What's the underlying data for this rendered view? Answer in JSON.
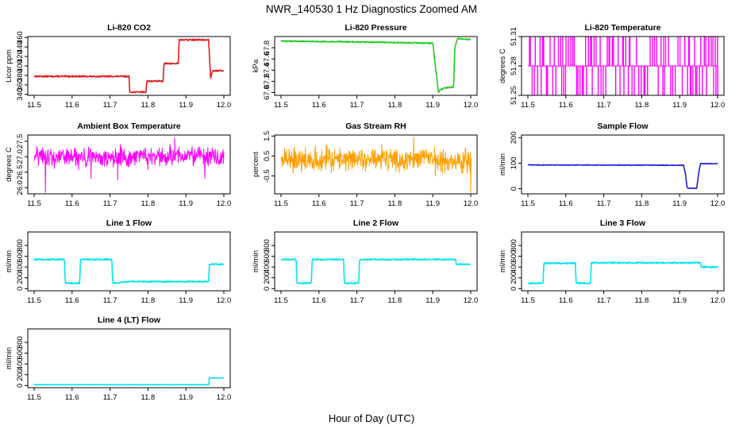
{
  "title": "NWR_140530  1 Hz Diagnostics Zoomed AM",
  "xlabel": "Hour of Day (UTC)",
  "colors": {
    "red": "#e41a1c",
    "green": "#1fcc1f",
    "magenta": "#ff00ff",
    "orange": "#ff9f00",
    "blue": "#1f1fd6",
    "cyan": "#00e5ee"
  },
  "chart_data": [
    {
      "type": "line",
      "title": "Li-820 CO2",
      "ylabel": "Licor ppm",
      "color": "#e41a1c",
      "noise": 1.5,
      "x": [
        11.5,
        11.75,
        11.752,
        11.795,
        11.797,
        11.84,
        11.842,
        11.88,
        11.882,
        11.96,
        11.965,
        11.97,
        12.0
      ],
      "y": [
        378,
        378,
        345,
        345,
        368,
        368,
        405,
        405,
        455,
        455,
        375,
        390,
        390
      ],
      "xlim": [
        11.5,
        12.0
      ],
      "ylim": [
        338,
        462
      ],
      "xticks": [
        "11.5",
        "11.6",
        "11.7",
        "11.8",
        "11.9",
        "12.0"
      ],
      "yticks": [
        "340",
        "360",
        "380",
        "400",
        "420",
        "440",
        "460"
      ]
    },
    {
      "type": "line",
      "title": "Li-820 Pressure",
      "ylabel": "kPa",
      "color": "#1fcc1f",
      "noise": 0.01,
      "x": [
        11.5,
        11.75,
        11.9,
        11.915,
        11.92,
        11.93,
        11.955,
        11.958,
        11.965,
        11.97,
        12.0
      ],
      "y": [
        67.92,
        67.9,
        67.88,
        67.0,
        67.05,
        67.08,
        67.1,
        67.8,
        67.96,
        67.96,
        67.95
      ],
      "xlim": [
        11.5,
        12.0
      ],
      "ylim": [
        66.95,
        68.0
      ],
      "xticks": [
        "11.5",
        "11.6",
        "11.7",
        "11.8",
        "11.9",
        "12.0"
      ],
      "yticks": [
        "67.0",
        "67.2",
        "67.4",
        "67.6",
        "67.8"
      ]
    },
    {
      "type": "line",
      "title": "Li-820 Temperature",
      "ylabel": "degrees C",
      "color": "#ff00ff",
      "pattern": "binary",
      "levels": [
        51.25,
        51.28,
        51.31
      ],
      "xlim": [
        11.5,
        12.0
      ],
      "ylim": [
        51.25,
        51.31
      ],
      "xticks": [
        "11.5",
        "11.6",
        "11.7",
        "11.8",
        "11.9",
        "12.0"
      ],
      "yticks": [
        "51.25",
        "51.28",
        "51.31"
      ]
    },
    {
      "type": "line",
      "title": "Ambient Box Temperature",
      "ylabel": "degrees C",
      "color": "#ff00ff",
      "pattern": "noisy",
      "mean": 27.0,
      "amplitude": 0.28,
      "spikes": [
        [
          11.53,
          25.85
        ],
        [
          11.65,
          26.3
        ],
        [
          11.72,
          26.25
        ],
        [
          11.87,
          27.6
        ],
        [
          11.95,
          26.3
        ]
      ],
      "xlim": [
        11.5,
        12.0
      ],
      "ylim": [
        25.8,
        27.7
      ],
      "xticks": [
        "11.5",
        "11.6",
        "11.7",
        "11.8",
        "11.9",
        "12.0"
      ],
      "yticks": [
        "26.0",
        "26.5",
        "27.0",
        "27.5"
      ]
    },
    {
      "type": "line",
      "title": "Gas Stream RH",
      "ylabel": "percent",
      "color": "#ff9f00",
      "pattern": "noisy",
      "mean": 0.35,
      "amplitude": 0.55,
      "spikes": [
        [
          11.85,
          1.45
        ],
        [
          12.0,
          -1.35
        ]
      ],
      "xlim": [
        11.5,
        12.0
      ],
      "ylim": [
        -1.4,
        1.55
      ],
      "xticks": [
        "11.5",
        "11.6",
        "11.7",
        "11.8",
        "11.9",
        "12.0"
      ],
      "yticks": [
        "-0.5",
        "0.5",
        "1.5"
      ]
    },
    {
      "type": "line",
      "title": "Sample Flow",
      "ylabel": "ml/min",
      "color": "#1f1fd6",
      "noise": 1.2,
      "x": [
        11.5,
        11.91,
        11.915,
        11.92,
        11.945,
        11.95,
        11.955,
        12.0
      ],
      "y": [
        93,
        92,
        60,
        2,
        2,
        60,
        98,
        98
      ],
      "xlim": [
        11.5,
        12.0
      ],
      "ylim": [
        -20,
        210
      ],
      "xticks": [
        "11.5",
        "11.6",
        "11.7",
        "11.8",
        "11.9",
        "12.0"
      ],
      "yticks": [
        "0",
        "100",
        "200"
      ]
    },
    {
      "type": "line",
      "title": "Line 1 Flow",
      "ylabel": "ml/min",
      "color": "#00e5ee",
      "noise": 12,
      "x": [
        11.5,
        11.58,
        11.582,
        11.62,
        11.622,
        11.705,
        11.707,
        11.75,
        11.96,
        11.962,
        12.0
      ],
      "y": [
        540,
        540,
        100,
        100,
        540,
        540,
        100,
        130,
        130,
        450,
        450
      ],
      "xlim": [
        11.5,
        12.0
      ],
      "ylim": [
        -40,
        1050
      ],
      "xticks": [
        "11.5",
        "11.6",
        "11.7",
        "11.8",
        "11.9",
        "12.0"
      ],
      "yticks": [
        "0",
        "200",
        "400",
        "600",
        "800"
      ]
    },
    {
      "type": "line",
      "title": "Line 2 Flow",
      "ylabel": "ml/min",
      "color": "#00e5ee",
      "noise": 12,
      "x": [
        11.5,
        11.54,
        11.542,
        11.58,
        11.582,
        11.665,
        11.667,
        11.705,
        11.707,
        11.96,
        11.962,
        12.0
      ],
      "y": [
        540,
        540,
        100,
        100,
        540,
        540,
        100,
        100,
        540,
        540,
        450,
        450
      ],
      "xlim": [
        11.5,
        12.0
      ],
      "ylim": [
        -40,
        1050
      ],
      "xticks": [
        "11.5",
        "11.6",
        "11.7",
        "11.8",
        "11.9",
        "12.0"
      ],
      "yticks": [
        "0",
        "200",
        "400",
        "600",
        "800"
      ]
    },
    {
      "type": "line",
      "title": "Line 3 Flow",
      "ylabel": "ml/min",
      "color": "#00e5ee",
      "noise": 12,
      "x": [
        11.5,
        11.54,
        11.542,
        11.625,
        11.627,
        11.665,
        11.667,
        11.955,
        11.957,
        12.0
      ],
      "y": [
        100,
        100,
        470,
        470,
        100,
        100,
        480,
        480,
        400,
        400
      ],
      "xlim": [
        11.5,
        12.0
      ],
      "ylim": [
        -40,
        1050
      ],
      "xticks": [
        "11.5",
        "11.6",
        "11.7",
        "11.8",
        "11.9",
        "12.0"
      ],
      "yticks": [
        "0",
        "200",
        "400",
        "600",
        "800"
      ]
    },
    {
      "type": "line",
      "title": "Line 4 (LT) Flow",
      "ylabel": "ml/min",
      "color": "#00e5ee",
      "noise": 3,
      "x": [
        11.5,
        11.96,
        11.962,
        12.0
      ],
      "y": [
        15,
        15,
        140,
        140
      ],
      "xlim": [
        11.5,
        12.0
      ],
      "ylim": [
        -40,
        1050
      ],
      "xticks": [
        "11.5",
        "11.6",
        "11.7",
        "11.8",
        "11.9",
        "12.0"
      ],
      "yticks": [
        "0",
        "200",
        "400",
        "600",
        "800"
      ]
    }
  ]
}
